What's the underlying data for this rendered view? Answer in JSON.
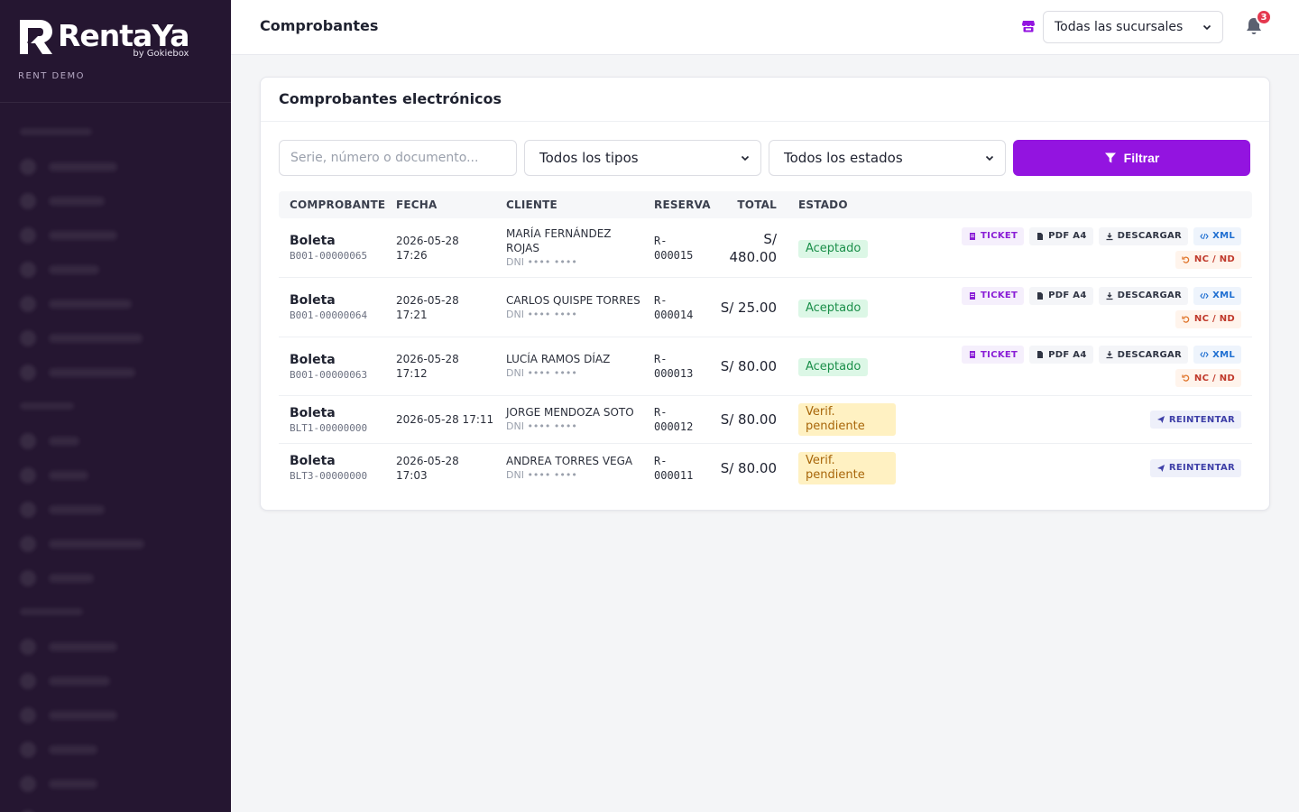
{
  "brand": {
    "name": "RentaYa",
    "by": "by Gokiebox",
    "tenant": "RENT DEMO"
  },
  "topbar": {
    "title": "Comprobantes",
    "branch_value": "Todas las sucursales",
    "notifications": "3"
  },
  "card": {
    "title": "Comprobantes electrónicos"
  },
  "filters": {
    "search_placeholder": "Serie, número o documento...",
    "type_value": "Todos los tipos",
    "status_value": "Todos los estados",
    "filter_label": "Filtrar"
  },
  "table": {
    "headers": [
      "COMPROBANTE",
      "FECHA",
      "CLIENTE",
      "RESERVA",
      "TOTAL",
      "ESTADO"
    ],
    "rows": [
      {
        "type": "Boleta",
        "number": "B001-00000065",
        "date": "2026-05-28",
        "time": "17:26",
        "client": "MARÍA FERNÁNDEZ ROJAS",
        "client_doc": "DNI •••• ••••",
        "res_a": "R-",
        "res_b": "000015",
        "total_a": "S/",
        "total_b": "480.00",
        "status": "Aceptado"
      },
      {
        "type": "Boleta",
        "number": "B001-00000064",
        "date": "2026-05-28",
        "time": "17:21",
        "client": "CARLOS QUISPE TORRES",
        "client_doc": "DNI •••• ••••",
        "res_a": "R-",
        "res_b": "000014",
        "total": "S/ 25.00",
        "status": "Aceptado"
      },
      {
        "type": "Boleta",
        "number": "B001-00000063",
        "date": "2026-05-28",
        "time": "17:12",
        "client": "LUCÍA RAMOS DÍAZ",
        "client_doc": "DNI •••• ••••",
        "res_a": "R-",
        "res_b": "000013",
        "total": "S/ 80.00",
        "status": "Aceptado"
      },
      {
        "type": "Boleta",
        "number": "BLT1-00000000",
        "datetime": "2026-05-28 17:11",
        "client": "JORGE MENDOZA SOTO",
        "client_doc": "DNI •••• ••••",
        "res_a": "R-",
        "res_b": "000012",
        "total": "S/ 80.00",
        "status_a": "Verif.",
        "status_b": "pendiente"
      },
      {
        "type": "Boleta",
        "number": "BLT3-00000000",
        "date": "2026-05-28",
        "time": "17:03",
        "client": "ANDREA TORRES VEGA",
        "client_doc": "DNI •••• ••••",
        "res_a": "R-",
        "res_b": "000011",
        "total": "S/ 80.00",
        "status_a": "Verif.",
        "status_b": "pendiente"
      }
    ],
    "actions": {
      "ticket": "TICKET",
      "pdf": "PDF A4",
      "download": "DESCARGAR",
      "xml": "XML",
      "nc": "NC / ND",
      "retry": "REINTENTAR"
    }
  },
  "colors": {
    "sidebar": "#251631",
    "accent": "#9314e0",
    "accepted": "#1b8f4a",
    "pending": "#a8660a"
  }
}
